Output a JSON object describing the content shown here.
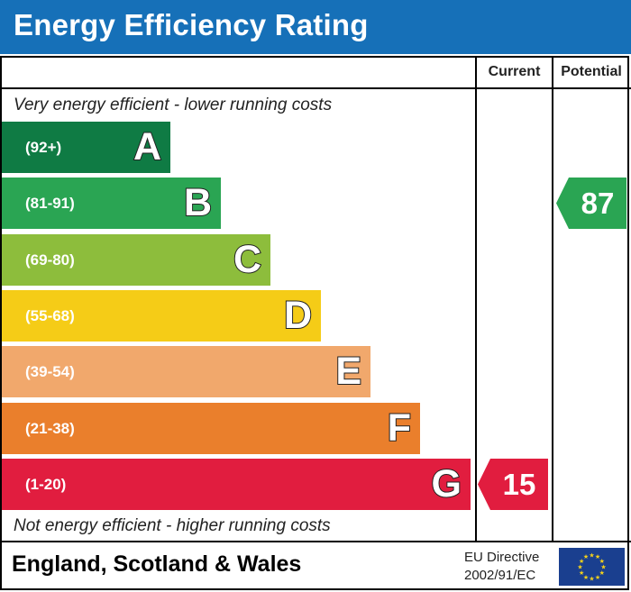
{
  "header": {
    "title": "Energy Efficiency Rating"
  },
  "columns": {
    "current": "Current",
    "potential": "Potential"
  },
  "captions": {
    "top": "Very energy efficient - lower running costs",
    "bottom": "Not energy efficient - higher running costs"
  },
  "colors": {
    "header_bg": "#1670b8",
    "A": "#0f7b44",
    "B": "#2aa553",
    "C": "#8dbd3c",
    "D": "#f5cc17",
    "E": "#f1a86c",
    "F": "#ea7f2c",
    "G": "#e11d3f"
  },
  "chart_data": {
    "type": "bar",
    "categories": [
      "A",
      "B",
      "C",
      "D",
      "E",
      "F",
      "G"
    ],
    "ranges": [
      "(92+)",
      "(81-91)",
      "(69-80)",
      "(55-68)",
      "(39-54)",
      "(21-38)",
      "(1-20)"
    ],
    "bands": [
      {
        "letter": "A",
        "range": "(92+)",
        "min": 92,
        "max": 100
      },
      {
        "letter": "B",
        "range": "(81-91)",
        "min": 81,
        "max": 91
      },
      {
        "letter": "C",
        "range": "(69-80)",
        "min": 69,
        "max": 80
      },
      {
        "letter": "D",
        "range": "(55-68)",
        "min": 55,
        "max": 68
      },
      {
        "letter": "E",
        "range": "(39-54)",
        "min": 39,
        "max": 54
      },
      {
        "letter": "F",
        "range": "(21-38)",
        "min": 21,
        "max": 38
      },
      {
        "letter": "G",
        "range": "(1-20)",
        "min": 1,
        "max": 20
      }
    ],
    "current": {
      "value": 15,
      "band": "G",
      "label": "15"
    },
    "potential": {
      "value": 87,
      "band": "B",
      "label": "87"
    }
  },
  "footer": {
    "region": "England, Scotland & Wales",
    "directive_line1": "EU Directive",
    "directive_line2": "2002/91/EC"
  }
}
